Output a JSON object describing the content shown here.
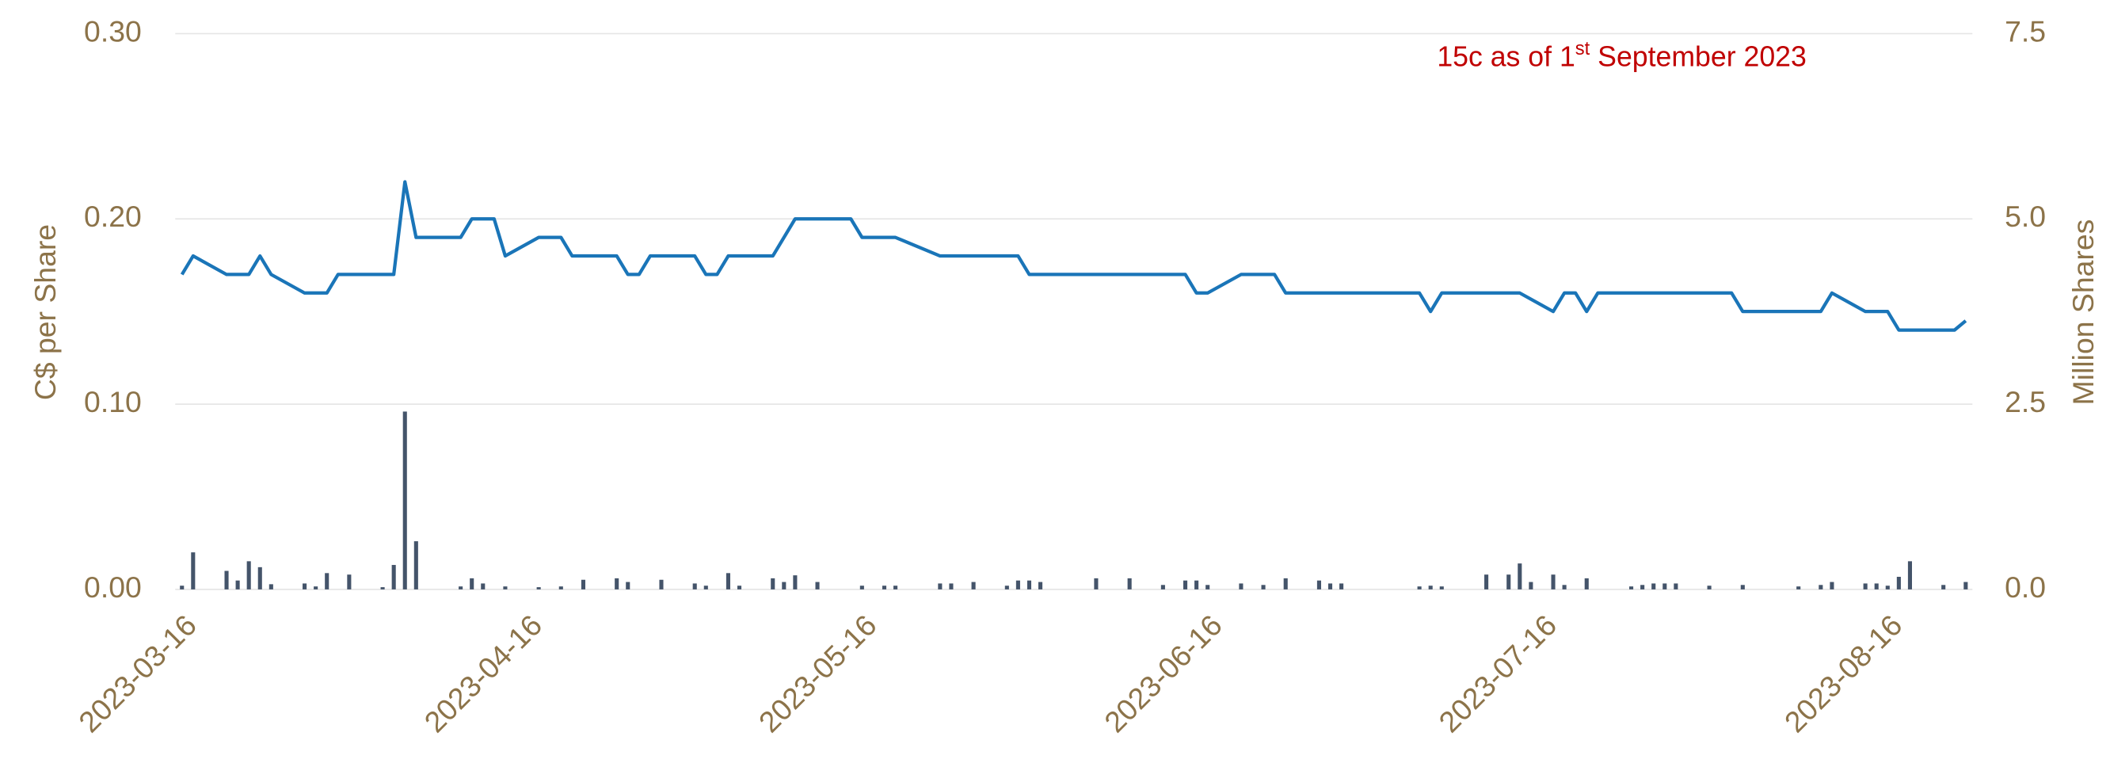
{
  "chart_data": {
    "type": "line-bar",
    "annotation": [
      "15c as of 1",
      "st",
      " September 2023"
    ],
    "y_label": "C$ per Share",
    "y2_label": "Million Shares",
    "xlim": [
      "2023-03-16",
      "2023-08-23"
    ],
    "xticks": [
      "2023-03-16",
      "2023-04-16",
      "2023-05-16",
      "2023-06-16",
      "2023-07-16",
      "2023-08-16"
    ],
    "ylim": [
      0,
      0.3
    ],
    "yticks": [
      {
        "value": 0,
        "label": "0.00"
      },
      {
        "value": 0.1,
        "label": "0.10"
      },
      {
        "value": 0.2,
        "label": "0.20"
      },
      {
        "value": 0.3,
        "label": "0.30"
      }
    ],
    "y2lim": [
      0,
      7.5
    ],
    "y2ticks": [
      {
        "value": 0,
        "label": "0.0"
      },
      2.5,
      {
        "value": 5,
        "label": "5.0"
      },
      7.5
    ],
    "grid": true,
    "series": [
      {
        "type": "line",
        "color": "#1a75b8",
        "x": [
          "2023-03-16",
          "2023-03-17",
          "2023-03-20",
          "2023-03-22",
          "2023-03-23",
          "2023-03-24",
          "2023-03-27",
          "2023-03-29",
          "2023-03-30",
          "2023-04-04",
          "2023-04-05",
          "2023-04-06",
          "2023-04-10",
          "2023-04-11",
          "2023-04-13",
          "2023-04-14",
          "2023-04-17",
          "2023-04-19",
          "2023-04-20",
          "2023-04-24",
          "2023-04-25",
          "2023-04-26",
          "2023-04-27",
          "2023-05-01",
          "2023-05-02",
          "2023-05-03",
          "2023-05-04",
          "2023-05-08",
          "2023-05-10",
          "2023-05-15",
          "2023-05-16",
          "2023-05-19",
          "2023-05-23",
          "2023-05-30",
          "2023-05-31",
          "2023-06-14",
          "2023-06-15",
          "2023-06-16",
          "2023-06-19",
          "2023-06-22",
          "2023-06-23",
          "2023-07-05",
          "2023-07-06",
          "2023-07-07",
          "2023-07-14",
          "2023-07-17",
          "2023-07-18",
          "2023-07-19",
          "2023-07-20",
          "2023-07-21",
          "2023-08-02",
          "2023-08-03",
          "2023-08-10",
          "2023-08-11",
          "2023-08-14",
          "2023-08-16",
          "2023-08-17",
          "2023-08-22",
          "2023-08-23"
        ],
        "values": [
          0.17,
          0.18,
          0.17,
          0.17,
          0.18,
          0.17,
          0.16,
          0.16,
          0.17,
          0.17,
          0.22,
          0.19,
          0.19,
          0.2,
          0.2,
          0.18,
          0.19,
          0.19,
          0.18,
          0.18,
          0.17,
          0.17,
          0.18,
          0.18,
          0.17,
          0.17,
          0.18,
          0.18,
          0.2,
          0.2,
          0.19,
          0.19,
          0.18,
          0.18,
          0.17,
          0.17,
          0.16,
          0.16,
          0.17,
          0.17,
          0.16,
          0.16,
          0.15,
          0.16,
          0.16,
          0.15,
          0.16,
          0.16,
          0.15,
          0.16,
          0.16,
          0.15,
          0.15,
          0.16,
          0.15,
          0.15,
          0.14,
          0.14,
          0.145
        ]
      },
      {
        "type": "bar",
        "axis": "y2",
        "color": "#44546a",
        "x": [
          "2023-03-16",
          "2023-03-17",
          "2023-03-20",
          "2023-03-21",
          "2023-03-22",
          "2023-03-23",
          "2023-03-24",
          "2023-03-27",
          "2023-03-28",
          "2023-03-29",
          "2023-03-31",
          "2023-04-03",
          "2023-04-04",
          "2023-04-05",
          "2023-04-06",
          "2023-04-10",
          "2023-04-11",
          "2023-04-12",
          "2023-04-14",
          "2023-04-17",
          "2023-04-19",
          "2023-04-21",
          "2023-04-24",
          "2023-04-25",
          "2023-04-28",
          "2023-05-01",
          "2023-05-02",
          "2023-05-04",
          "2023-05-05",
          "2023-05-08",
          "2023-05-09",
          "2023-05-10",
          "2023-05-12",
          "2023-05-16",
          "2023-05-18",
          "2023-05-19",
          "2023-05-23",
          "2023-05-24",
          "2023-05-26",
          "2023-05-29",
          "2023-05-30",
          "2023-05-31",
          "2023-06-01",
          "2023-06-06",
          "2023-06-09",
          "2023-06-12",
          "2023-06-14",
          "2023-06-15",
          "2023-06-16",
          "2023-06-19",
          "2023-06-21",
          "2023-06-23",
          "2023-06-26",
          "2023-06-27",
          "2023-06-28",
          "2023-07-05",
          "2023-07-06",
          "2023-07-07",
          "2023-07-11",
          "2023-07-13",
          "2023-07-14",
          "2023-07-15",
          "2023-07-17",
          "2023-07-18",
          "2023-07-20",
          "2023-07-24",
          "2023-07-25",
          "2023-07-26",
          "2023-07-27",
          "2023-07-28",
          "2023-07-31",
          "2023-08-03",
          "2023-08-08",
          "2023-08-10",
          "2023-08-11",
          "2023-08-14",
          "2023-08-15",
          "2023-08-16",
          "2023-08-17",
          "2023-08-18",
          "2023-08-21",
          "2023-08-23"
        ],
        "values": [
          0.05,
          0.5,
          0.25,
          0.12,
          0.38,
          0.3,
          0.07,
          0.08,
          0.04,
          0.22,
          0.2,
          0.03,
          0.33,
          2.4,
          0.65,
          0.04,
          0.15,
          0.08,
          0.04,
          0.03,
          0.04,
          0.13,
          0.15,
          0.1,
          0.13,
          0.08,
          0.05,
          0.22,
          0.05,
          0.15,
          0.1,
          0.19,
          0.1,
          0.05,
          0.05,
          0.05,
          0.08,
          0.08,
          0.1,
          0.05,
          0.12,
          0.12,
          0.1,
          0.15,
          0.15,
          0.06,
          0.12,
          0.12,
          0.06,
          0.08,
          0.06,
          0.15,
          0.12,
          0.08,
          0.08,
          0.04,
          0.05,
          0.04,
          0.2,
          0.2,
          0.35,
          0.1,
          0.2,
          0.06,
          0.15,
          0.04,
          0.06,
          0.08,
          0.08,
          0.08,
          0.05,
          0.06,
          0.04,
          0.06,
          0.1,
          0.08,
          0.08,
          0.05,
          0.17,
          0.38,
          0.06,
          0.1
        ]
      }
    ]
  }
}
